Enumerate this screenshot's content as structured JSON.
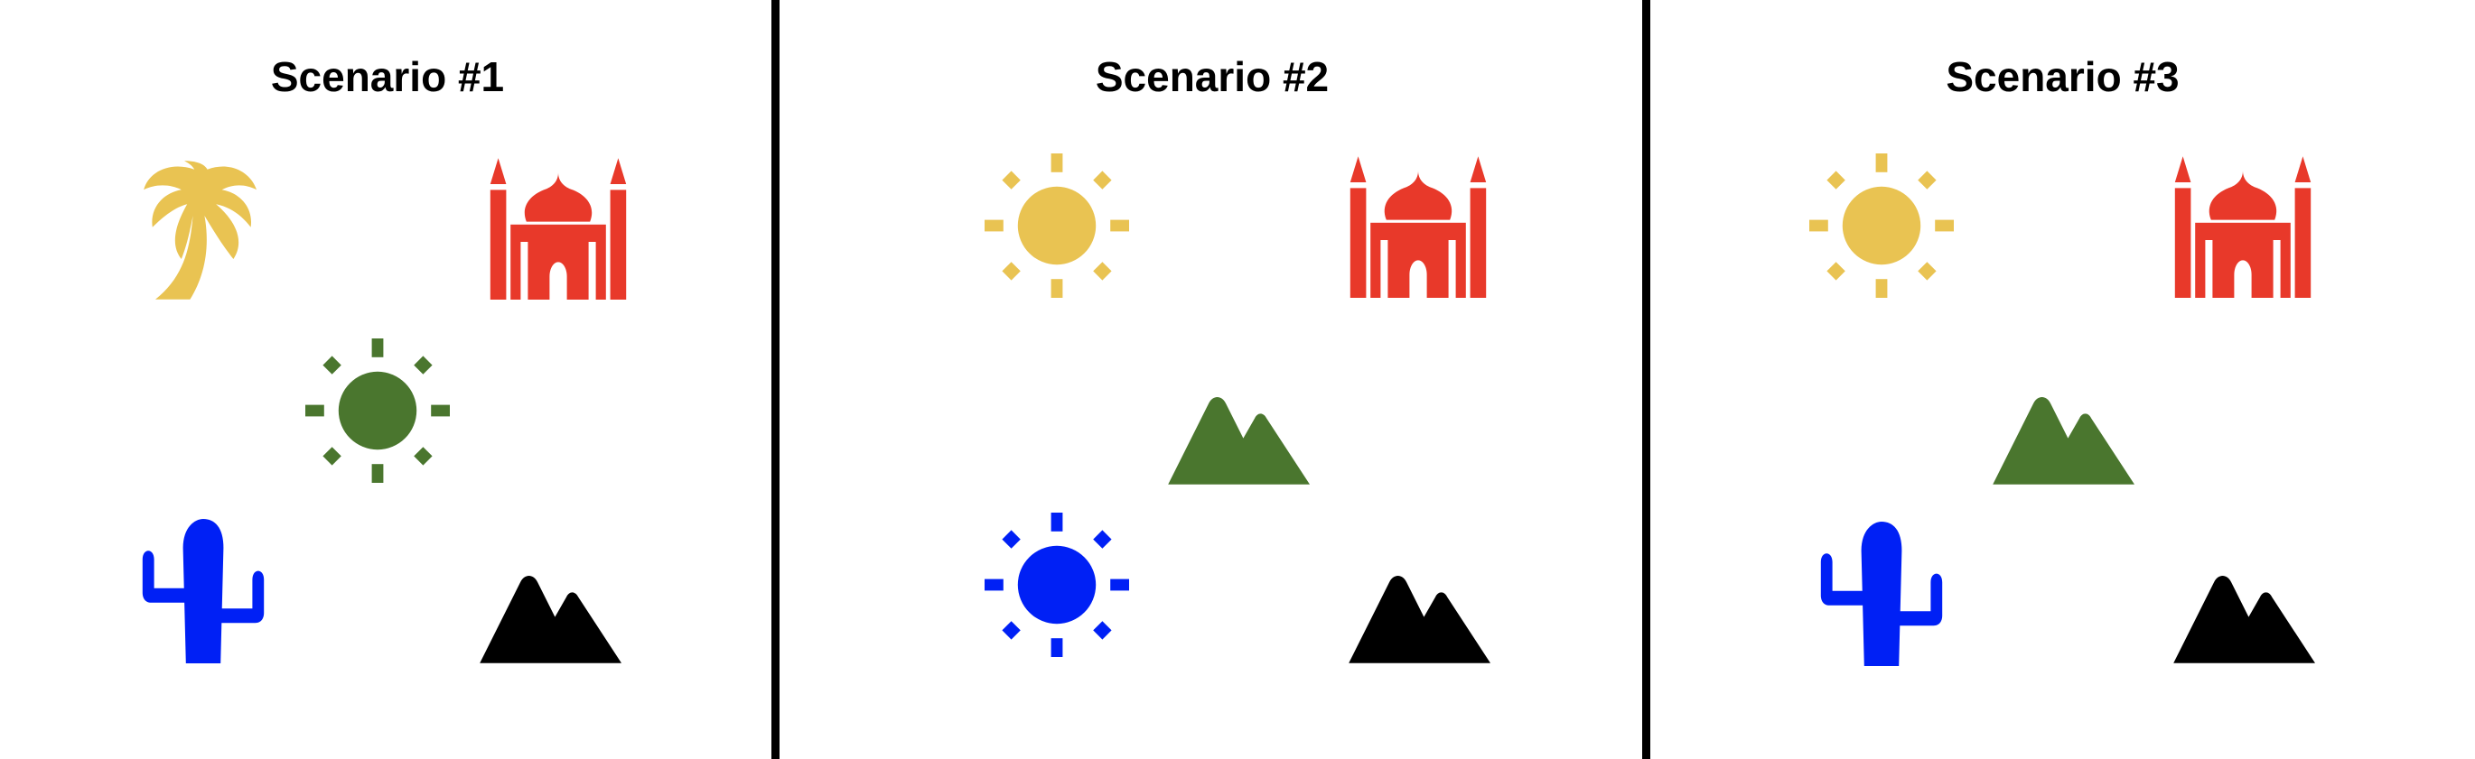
{
  "colors": {
    "yellow": "#e9c352",
    "red": "#e8392a",
    "green": "#4a762e",
    "blue": "#0020f5",
    "black": "#000000"
  },
  "panels": [
    {
      "title": "Scenario #1",
      "icons": [
        {
          "name": "palm-tree-icon",
          "color": "yellow"
        },
        {
          "name": "mosque-icon",
          "color": "red"
        },
        {
          "name": "sun-icon",
          "color": "green"
        },
        {
          "name": "cactus-icon",
          "color": "blue"
        },
        {
          "name": "mountains-icon",
          "color": "black"
        }
      ]
    },
    {
      "title": "Scenario #2",
      "icons": [
        {
          "name": "sun-icon",
          "color": "yellow"
        },
        {
          "name": "mosque-icon",
          "color": "red"
        },
        {
          "name": "mountains-icon",
          "color": "green"
        },
        {
          "name": "sun-icon",
          "color": "blue"
        },
        {
          "name": "mountains-icon",
          "color": "black"
        }
      ]
    },
    {
      "title": "Scenario #3",
      "icons": [
        {
          "name": "sun-icon",
          "color": "yellow"
        },
        {
          "name": "mosque-icon",
          "color": "red"
        },
        {
          "name": "mountains-icon",
          "color": "green"
        },
        {
          "name": "cactus-icon",
          "color": "blue"
        },
        {
          "name": "mountains-icon",
          "color": "black"
        }
      ]
    }
  ]
}
